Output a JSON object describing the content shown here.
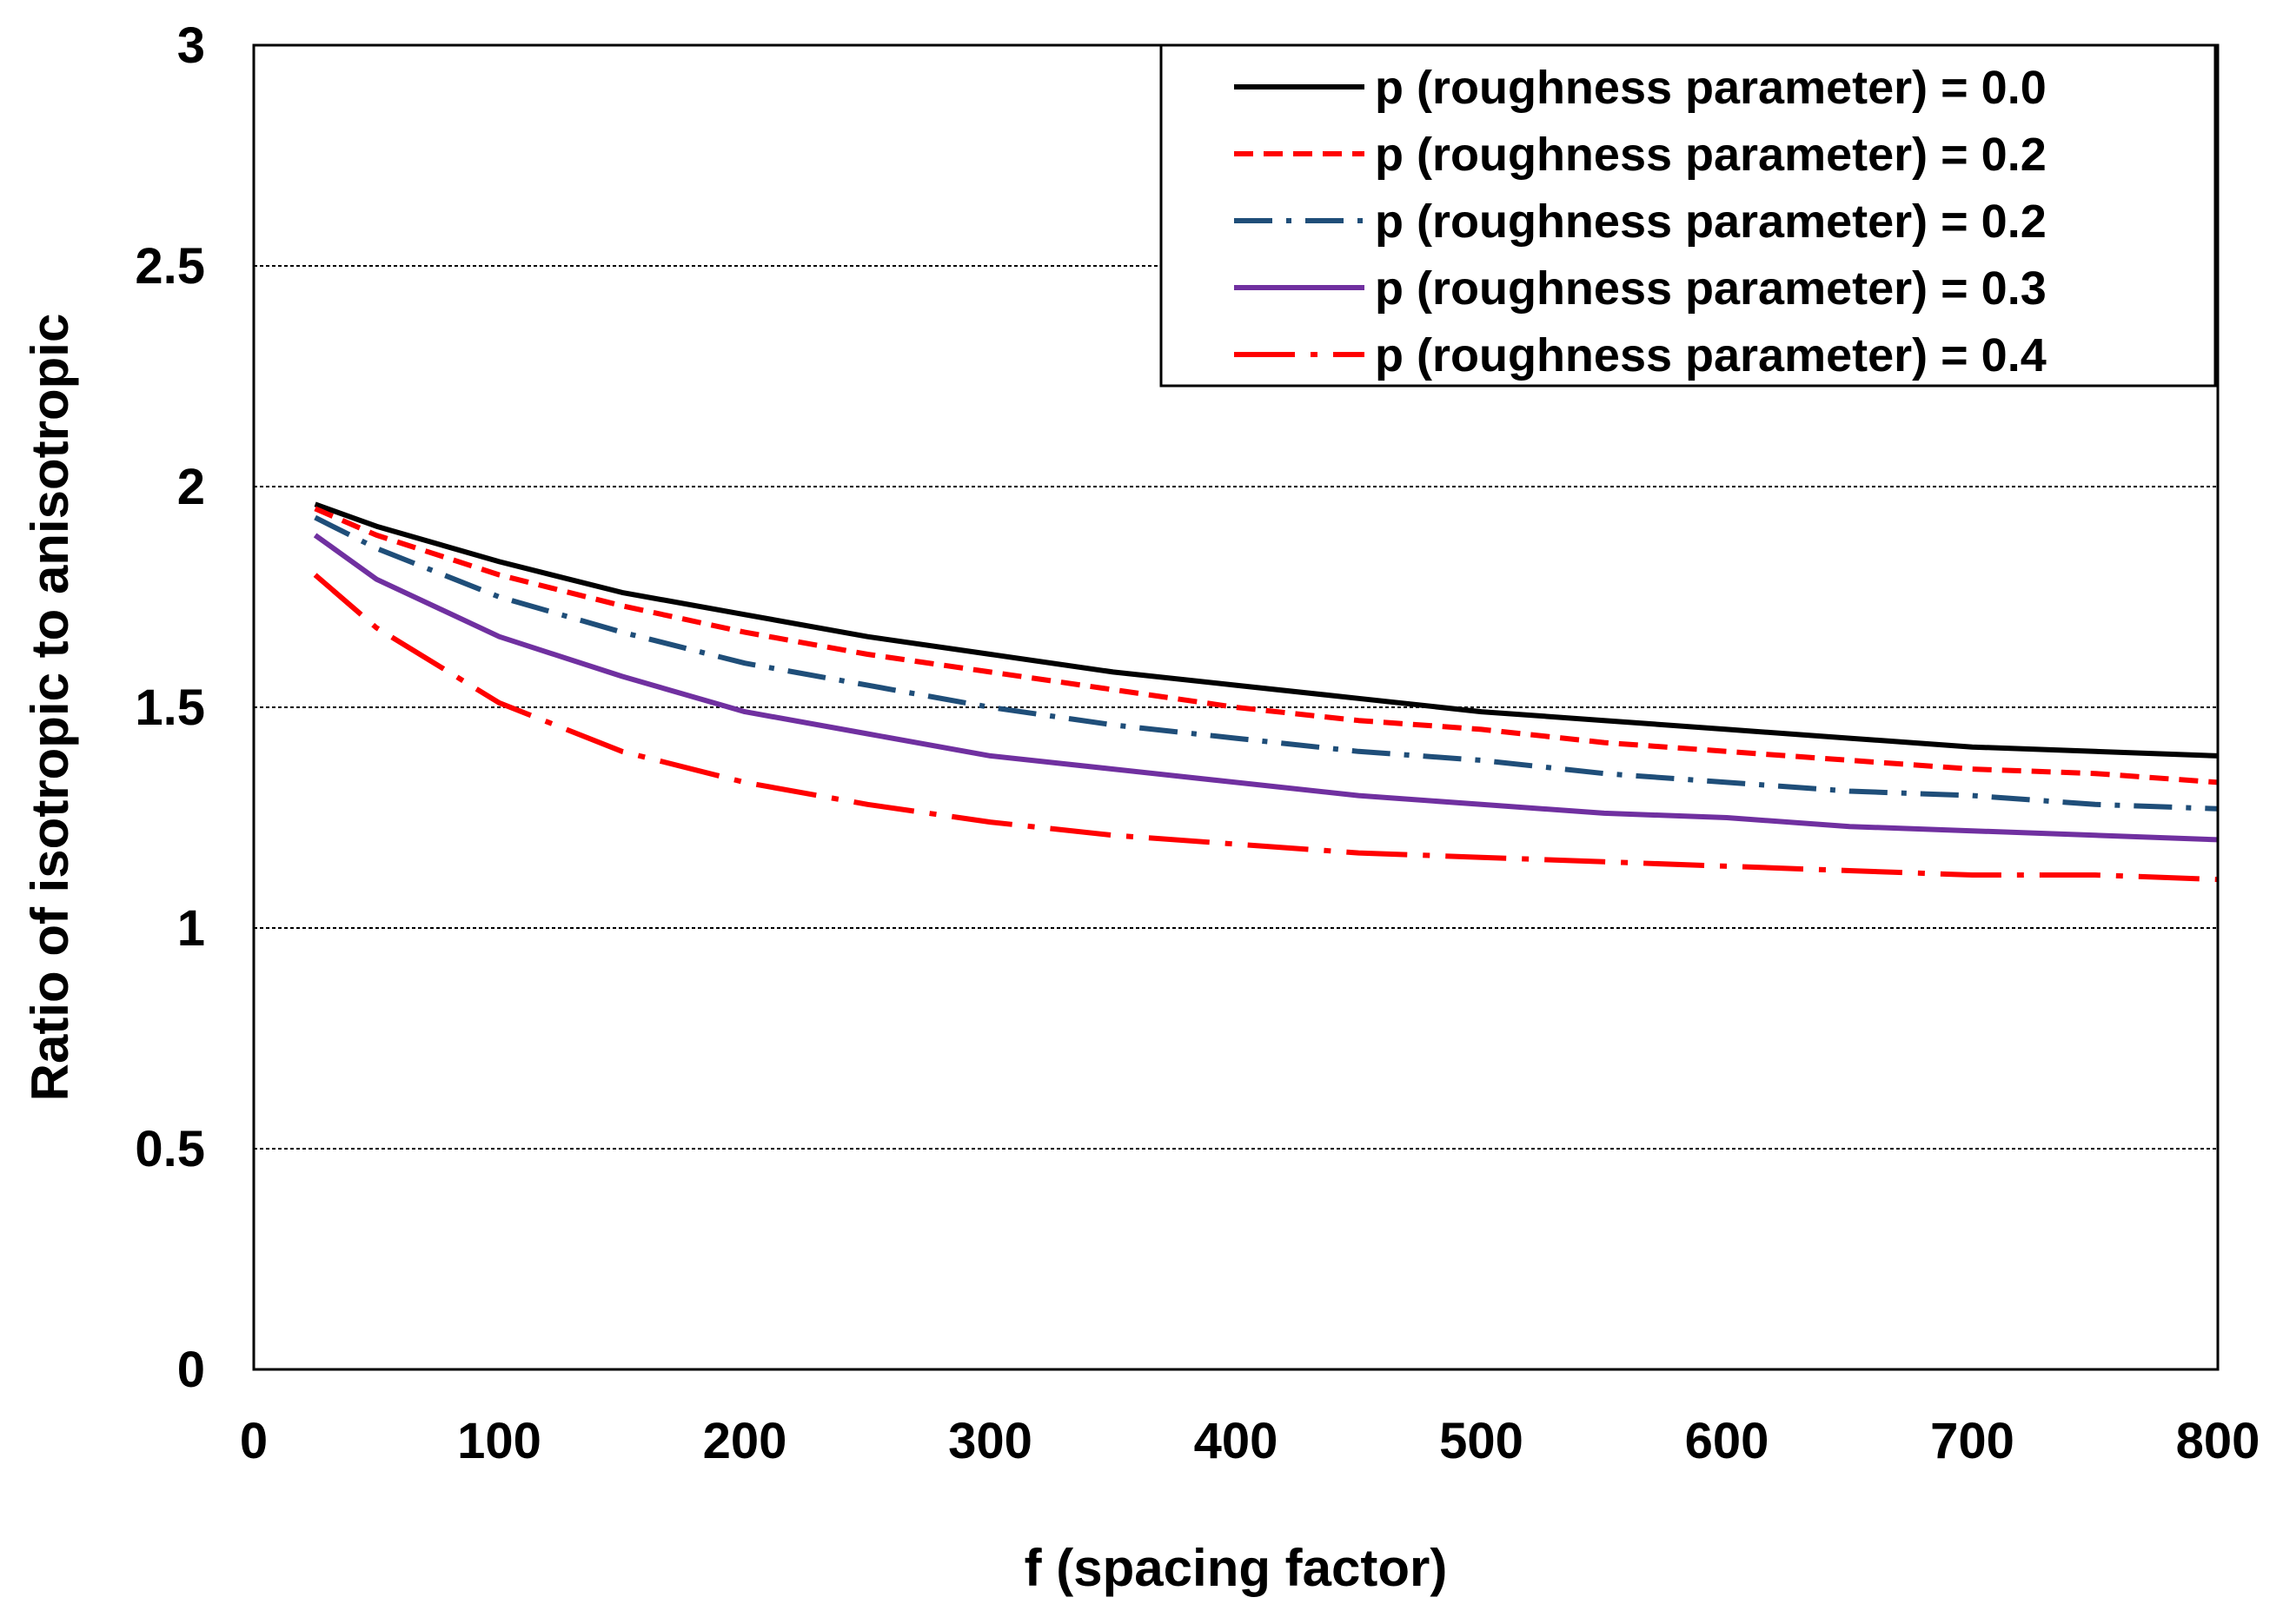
{
  "chart_data": {
    "type": "line",
    "title": "",
    "xlabel": "f (spacing factor)",
    "ylabel": "Ratio of isotropic to anisotropic",
    "xlim": [
      0,
      800
    ],
    "ylim": [
      0,
      3
    ],
    "x_ticks": [
      0,
      100,
      200,
      300,
      400,
      500,
      600,
      700,
      800
    ],
    "y_ticks": [
      0,
      0.5,
      1,
      1.5,
      2,
      2.5,
      3
    ],
    "x_tick_labels": [
      "0",
      "100",
      "200",
      "300",
      "400",
      "500",
      "600",
      "700",
      "800"
    ],
    "y_tick_labels": [
      "0",
      "0.5",
      "1",
      "1.5",
      "2",
      "2.5",
      "3"
    ],
    "grid": "horizontal dotted",
    "legend_position": "top-right",
    "x": [
      25,
      50,
      100,
      150,
      200,
      250,
      300,
      350,
      400,
      450,
      500,
      550,
      600,
      650,
      700,
      750,
      800
    ],
    "series": [
      {
        "name": "p (roughness parameter) = 0.0",
        "color": "#000000",
        "style": "solid",
        "values": [
          1.96,
          1.91,
          1.83,
          1.76,
          1.71,
          1.66,
          1.62,
          1.58,
          1.55,
          1.52,
          1.49,
          1.47,
          1.45,
          1.43,
          1.41,
          1.4,
          1.39
        ]
      },
      {
        "name": "p (roughness parameter) = 0.2",
        "color": "#ff0000",
        "style": "dashed",
        "values": [
          1.95,
          1.89,
          1.8,
          1.73,
          1.67,
          1.62,
          1.58,
          1.54,
          1.5,
          1.47,
          1.45,
          1.42,
          1.4,
          1.38,
          1.36,
          1.35,
          1.33
        ]
      },
      {
        "name": "p (roughness parameter) = 0.2",
        "color": "#1f4e79",
        "style": "dash-dot",
        "values": [
          1.93,
          1.86,
          1.75,
          1.67,
          1.6,
          1.55,
          1.5,
          1.46,
          1.43,
          1.4,
          1.38,
          1.35,
          1.33,
          1.31,
          1.3,
          1.28,
          1.27
        ]
      },
      {
        "name": "p (roughness parameter) = 0.3",
        "color": "#7030a0",
        "style": "solid",
        "values": [
          1.89,
          1.79,
          1.66,
          1.57,
          1.49,
          1.44,
          1.39,
          1.36,
          1.33,
          1.3,
          1.28,
          1.26,
          1.25,
          1.23,
          1.22,
          1.21,
          1.2
        ]
      },
      {
        "name": "p (roughness parameter) = 0.4",
        "color": "#ff0000",
        "style": "long-dash-dot",
        "values": [
          1.8,
          1.68,
          1.51,
          1.4,
          1.33,
          1.28,
          1.24,
          1.21,
          1.19,
          1.17,
          1.16,
          1.15,
          1.14,
          1.13,
          1.12,
          1.12,
          1.11
        ]
      }
    ]
  }
}
